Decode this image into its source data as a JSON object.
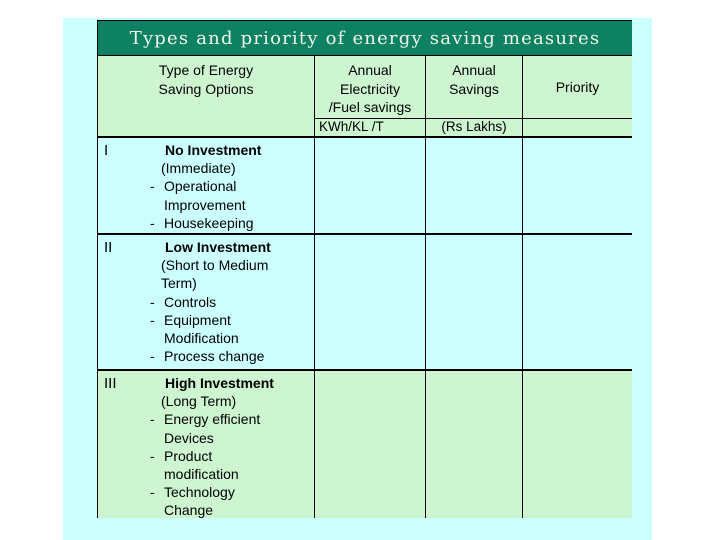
{
  "slide": {
    "title": "Types and priority of energy saving measures",
    "colors": {
      "page_bg": "#ffffff",
      "panel_bg": "#ccffff",
      "title_bar_bg": "#0d8162",
      "title_text": "#eef6ea",
      "header_bg": "#cdf5cf",
      "row_bg": "#ccffff",
      "row_highlight_bg": "#cdf5cf",
      "border": "#000000",
      "text": "#000000"
    },
    "table": {
      "bullet_char": "-",
      "header": {
        "columns": [
          {
            "lines": [
              "Type of  Energy",
              "Saving Options"
            ]
          },
          {
            "lines": [
              "Annual",
              "Electricity",
              "/Fuel savings"
            ]
          },
          {
            "lines": [
              "Annual",
              "Savings"
            ]
          },
          {
            "lines": [
              "Priority"
            ]
          }
        ],
        "sub": {
          "electricity_unit": "KWh/KL /T",
          "savings_unit": "(Rs Lakhs)"
        }
      },
      "rows": [
        {
          "numeral": "I",
          "title": "No Investment",
          "subtitle": "(Immediate)",
          "items": [
            "Operational Improvement",
            "Housekeeping"
          ]
        },
        {
          "numeral": "II",
          "title": "Low Investment",
          "subtitle": "(Short to Medium Term)",
          "items": [
            "Controls",
            "Equipment Modification",
            "Process change"
          ]
        },
        {
          "numeral": "III",
          "title": "High Investment",
          "subtitle": "(Long Term)",
          "items": [
            "Energy efficient Devices",
            "Product modification",
            "Technology Change"
          ]
        }
      ]
    }
  }
}
